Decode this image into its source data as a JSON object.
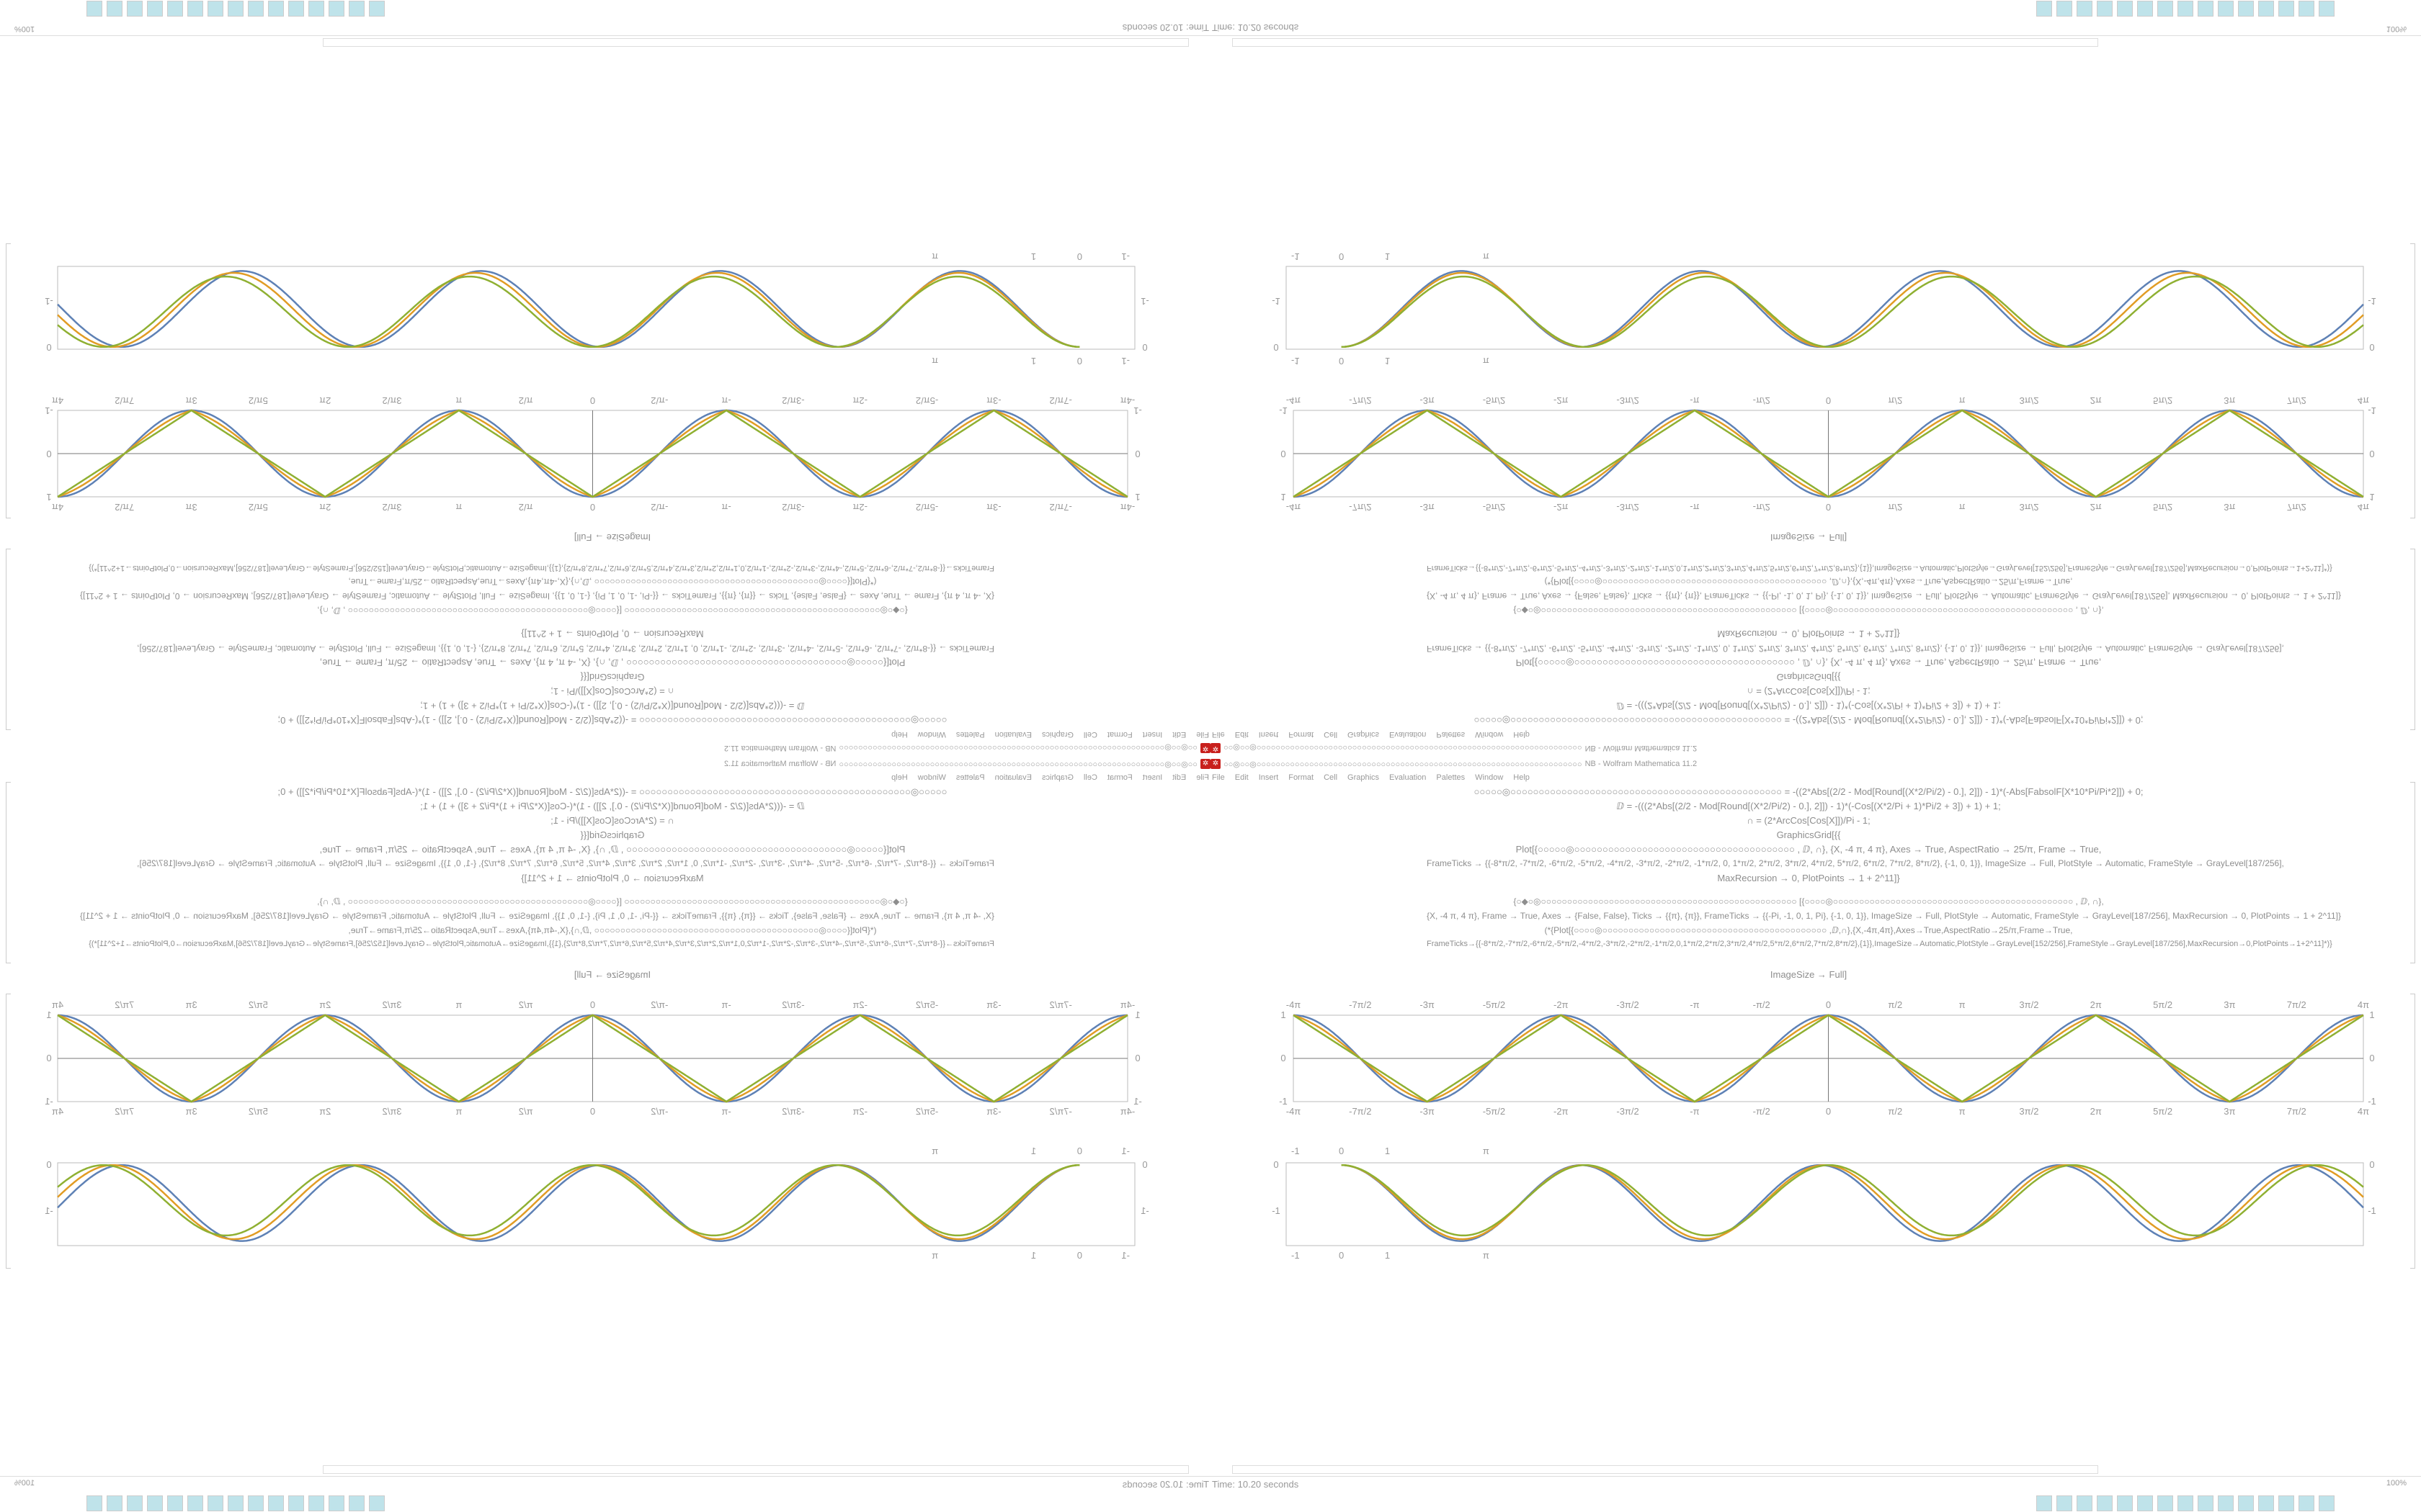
{
  "window": {
    "title_prefix": "○○◎○○◎○○○○○○○○○○○○○○○○○○○○○○○○○○○○○○○○○○○○○○○○○○○○○○○○○○○○○○○○○○○○○○○○○○○○",
    "title_suffix": "NB - Wolfram Mathematica 11.2",
    "app_icon": "mathematica-icon"
  },
  "menu": [
    "File",
    "Edit",
    "Insert",
    "Format",
    "Cell",
    "Graphics",
    "Evaluation",
    "Palettes",
    "Window",
    "Help"
  ],
  "code": {
    "block1": [
      "○○○○○◎○○○○○○○○○○○○○○○○○○○○○○○○○○○○○○○○○○○○○○○○○○○○○○○○     = -((2*Abs[(2/2 - Mod[Round[(X*2/Pi/2) - 0.], 2]]) - 1)*(-Abs[FabsolF[X*10*Pi/Pi*2]]) + 0;",
      "ⅅ = -(((2*Abs[(2/2 - Mod[Round[(X*2/Pi/2) - 0.], 2]]) - 1)*(-Cos[(X*2/Pi + 1)*Pi/2 + 3]) + 1) + 1;",
      "∩ = (2*ArcCos[Cos[X]])/Pi  - 1;",
      "GraphicsGrid[{{",
      "Plot[{○○○○○◎○○○○○○○○○○○○○○○○○○○○○○○○○○○○○○○○○○○○○○○    , ⅅ, ∩}, {X, -4 π, 4 π}, Axes → True, AspectRatio → 25/π, Frame → True,",
      "FrameTicks → {{-8*π/2, -7*π/2, -6*π/2, -5*π/2, -4*π/2, -3*π/2, -2*π/2, -1*π/2, 0, 1*π/2, 2*π/2, 3*π/2, 4*π/2, 5*π/2, 6*π/2, 7*π/2, 8*π/2}, {-1, 0, 1}}, ImageSize → Full, PlotStyle → Automatic, FrameStyle → GrayLevel[187/256],",
      "MaxRecursion → 0, PlotPoints → 1 + 2^11]}"
    ],
    "block2": [
      "{○◆○◎○○○○○○○○○○○○○○○○○○○○○○○○○○○○○○○○○○○○○○○○○○○○○○○○○   [{○○○○◎○○○○○○○○○○○○○○○○○○○○○○○○○○○○○○○○○○○○○○○○○○○○○○   , ⅅ, ∩},",
      "{X, -4 π, 4 π}, Frame → True, Axes → {False, False}, Ticks → {{π}, {π}}, FrameTicks → {{-Pi, -1, 0, 1, Pi}, {-1, 0, 1}}, ImageSize → Full, PlotStyle → Automatic, FrameStyle → GrayLevel[187/256], MaxRecursion → 0, PlotPoints → 1 + 2^11]}",
      "(*{Plot[{○○○○◎○○○○○○○○○○○○○○○○○○○○○○○○○○○○○○○○○○○○○○○○○○○   ,ⅅ,∩},{X,-4π,4π},Axes→True,AspectRatio→25/π,Frame→True,",
      "FrameTicks→{{-8*π/2,-7*π/2,-6*π/2,-5*π/2,-4*π/2,-3*π/2,-2*π/2,-1*π/2,0,1*π/2,2*π/2,3*π/2,4*π/2,5*π/2,6*π/2,7*π/2,8*π/2},{1}},ImageSize→Automatic,PlotStyle→GrayLevel[152/256],FrameStyle→GrayLevel[187/256],MaxRecursion→0,PlotPoints→1+2^11]*)}"
    ],
    "closing": "ImageSize → Full]"
  },
  "status": {
    "time_text": "Time: 10.20 seconds",
    "zoom": "100%"
  },
  "colors": {
    "series1": "#5e81b5",
    "series2": "#e19c24",
    "series3": "#8fb032",
    "frame": "#bbbbbb"
  },
  "chart_data": [
    {
      "type": "line",
      "xlim": [
        -12.566,
        12.566
      ],
      "ylim": [
        -1,
        1
      ],
      "axes": true,
      "frame": true,
      "x_tick_labels": [
        "-4π",
        "-7π/2",
        "-3π",
        "-5π/2",
        "-2π",
        "-3π/2",
        "-π",
        "-π/2",
        "0",
        "π/2",
        "π",
        "3π/2",
        "2π",
        "5π/2",
        "3π",
        "7π/2",
        "4π"
      ],
      "y_tick_labels": [
        "-1",
        "0",
        "1"
      ],
      "series": [
        {
          "shape": "smooth wave",
          "period": 6.283,
          "peak_at": 0,
          "amplitude": 1
        },
        {
          "shape": "blended wave",
          "period": 6.283,
          "peak_at": 0,
          "amplitude": 1
        },
        {
          "shape": "triangle wave",
          "period": 6.283,
          "peak_at": 0,
          "amplitude": 1
        }
      ]
    },
    {
      "type": "line",
      "xlim": [
        -1.2,
        22.2
      ],
      "ylim": [
        -1.75,
        0.05
      ],
      "axes": false,
      "frame": true,
      "x_tick_labels": [
        "-1",
        "0",
        "1",
        "π"
      ],
      "y_tick_labels": [
        "-1",
        "0"
      ],
      "series": [
        {
          "start_x": 0,
          "period": 5.2,
          "min_y": -1.65
        },
        {
          "start_x": 0,
          "period": 5.25,
          "min_y": -1.61
        },
        {
          "start_x": 0,
          "period": 5.3,
          "min_y": -1.53
        }
      ]
    }
  ]
}
